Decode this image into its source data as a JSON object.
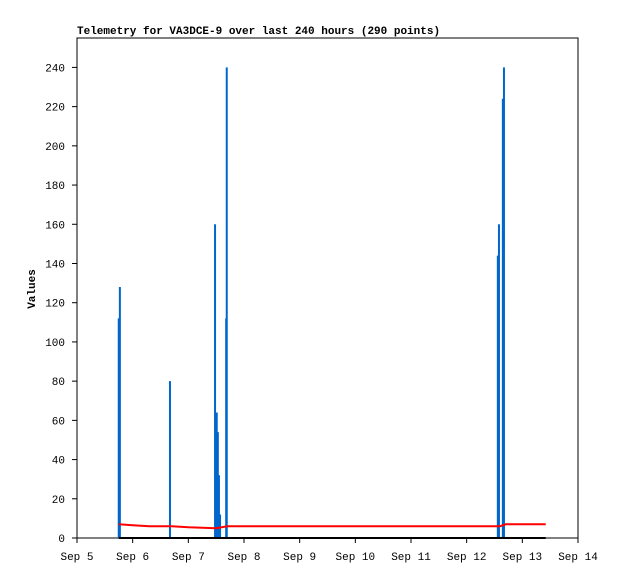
{
  "chart_data": {
    "type": "line",
    "title": "Telemetry for VA3DCE-9 over last 240 hours (290 points)",
    "y_label": "Values",
    "xlim": [
      5,
      14
    ],
    "xticks": [
      {
        "value": 5,
        "label": "Sep 5"
      },
      {
        "value": 6,
        "label": "Sep 6"
      },
      {
        "value": 7,
        "label": "Sep 7"
      },
      {
        "value": 8,
        "label": "Sep 8"
      },
      {
        "value": 9,
        "label": "Sep 9"
      },
      {
        "value": 10,
        "label": "Sep 10"
      },
      {
        "value": 11,
        "label": "Sep 11"
      },
      {
        "value": 12,
        "label": "Sep 12"
      },
      {
        "value": 13,
        "label": "Sep 13"
      },
      {
        "value": 14,
        "label": "Sep 14"
      }
    ],
    "ylim": [
      0,
      255
    ],
    "yticks": [
      0,
      20,
      40,
      60,
      80,
      100,
      120,
      140,
      160,
      180,
      200,
      220,
      240
    ],
    "series": [
      {
        "name": "blue",
        "type": "bar",
        "color": "#0066cc",
        "x": [
          5.75,
          5.77,
          6.67,
          7.48,
          7.51,
          7.53,
          7.55,
          7.57,
          7.68,
          7.69,
          12.56,
          12.58,
          12.65,
          12.67
        ],
        "values": [
          112,
          128,
          80,
          160,
          64,
          54,
          32,
          12,
          112,
          240,
          144,
          160,
          224,
          240
        ]
      },
      {
        "name": "red",
        "type": "line",
        "color": "#ff0000",
        "x": [
          5.75,
          6.0,
          6.3,
          6.7,
          7.0,
          7.5,
          7.7,
          12.6,
          12.7,
          13.42
        ],
        "values": [
          7,
          6.5,
          6,
          6,
          5.5,
          5,
          6,
          6,
          7,
          7
        ]
      },
      {
        "name": "black",
        "type": "line",
        "color": "#000000",
        "x": [
          5.75,
          13.42
        ],
        "values": [
          0,
          0
        ]
      }
    ]
  }
}
